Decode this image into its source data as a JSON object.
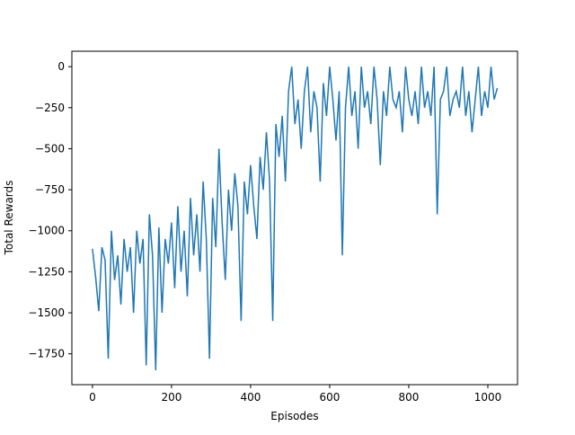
{
  "chart_data": {
    "type": "line",
    "x_label": "Episodes",
    "y_label": "Total Rewards",
    "xlim": [
      -52,
      1075
    ],
    "ylim": [
      -1938,
      94
    ],
    "xticks": [
      0,
      200,
      400,
      600,
      800,
      1000
    ],
    "yticks": [
      {
        "value": 0,
        "label": "0"
      },
      {
        "value": -250,
        "label": "−250"
      },
      {
        "value": -500,
        "label": "−500"
      },
      {
        "value": -750,
        "label": "−750"
      },
      {
        "value": -1000,
        "label": "−1000"
      },
      {
        "value": -1250,
        "label": "−1250"
      },
      {
        "value": -1500,
        "label": "−1500"
      },
      {
        "value": -1750,
        "label": "−1750"
      }
    ],
    "color": "#1f77b4",
    "x": [
      0,
      8,
      16,
      24,
      32,
      40,
      48,
      56,
      64,
      72,
      80,
      88,
      96,
      104,
      112,
      120,
      128,
      136,
      144,
      152,
      160,
      168,
      176,
      184,
      192,
      200,
      208,
      216,
      224,
      232,
      240,
      248,
      256,
      264,
      272,
      280,
      288,
      296,
      304,
      312,
      320,
      328,
      336,
      344,
      352,
      360,
      368,
      376,
      384,
      392,
      400,
      408,
      416,
      424,
      432,
      440,
      448,
      456,
      464,
      472,
      480,
      488,
      496,
      504,
      512,
      520,
      528,
      536,
      544,
      552,
      560,
      568,
      576,
      584,
      592,
      600,
      608,
      616,
      624,
      632,
      640,
      648,
      656,
      664,
      672,
      680,
      688,
      696,
      704,
      712,
      720,
      728,
      736,
      744,
      752,
      760,
      768,
      776,
      784,
      792,
      800,
      808,
      816,
      824,
      832,
      840,
      848,
      856,
      864,
      872,
      880,
      888,
      896,
      904,
      912,
      920,
      928,
      936,
      944,
      952,
      960,
      968,
      976,
      984,
      992,
      1000,
      1008,
      1016,
      1024
    ],
    "values": [
      -1110,
      -1280,
      -1490,
      -1100,
      -1180,
      -1780,
      -1000,
      -1300,
      -1150,
      -1450,
      -1050,
      -1250,
      -1100,
      -1500,
      -1000,
      -1200,
      -1050,
      -1820,
      -900,
      -1150,
      -1850,
      -980,
      -1500,
      -1050,
      -1200,
      -950,
      -1350,
      -850,
      -1250,
      -1000,
      -1400,
      -800,
      -1150,
      -900,
      -1250,
      -700,
      -1050,
      -1780,
      -800,
      -1100,
      -500,
      -950,
      -1300,
      -750,
      -1000,
      -650,
      -850,
      -1550,
      -700,
      -900,
      -600,
      -850,
      -1050,
      -550,
      -750,
      -400,
      -700,
      -1550,
      -350,
      -550,
      -300,
      -700,
      -150,
      0,
      -350,
      -200,
      -500,
      -150,
      0,
      -400,
      -150,
      -250,
      -700,
      -100,
      -300,
      0,
      -200,
      -450,
      -150,
      -1150,
      -250,
      0,
      -300,
      -150,
      -500,
      0,
      -250,
      -150,
      -350,
      0,
      -200,
      -600,
      -150,
      -300,
      0,
      -200,
      -250,
      -150,
      -400,
      0,
      -200,
      -300,
      -150,
      -350,
      0,
      -250,
      -150,
      -300,
      0,
      -900,
      -200,
      -150,
      0,
      -300,
      -200,
      -150,
      -250,
      0,
      -300,
      -150,
      -400,
      -200,
      0,
      -300,
      -150,
      -250,
      0,
      -200,
      -130
    ]
  }
}
